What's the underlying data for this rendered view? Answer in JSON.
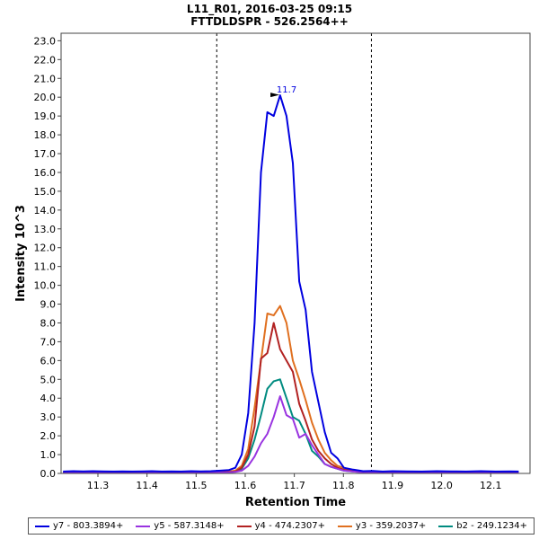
{
  "chart_data": {
    "type": "line",
    "title": "L11_R01, 2016-03-25 09:15",
    "subtitle": "FTTDLDSPR - 526.2564++",
    "xlabel": "Retention Time",
    "ylabel": "Intensity 10^3",
    "xlim": [
      11.225,
      12.18
    ],
    "ylim": [
      0,
      23.4
    ],
    "xticks": [
      "11.3",
      "11.4",
      "11.5",
      "11.6",
      "11.7",
      "11.8",
      "11.9",
      "12.0",
      "12.1"
    ],
    "yticks": [
      "0.0",
      "1.0",
      "2.0",
      "3.0",
      "4.0",
      "5.0",
      "6.0",
      "7.0",
      "8.0",
      "9.0",
      "10.0",
      "11.0",
      "12.0",
      "13.0",
      "14.0",
      "15.0",
      "16.0",
      "17.0",
      "18.0",
      "19.0",
      "20.0",
      "21.0",
      "22.0",
      "23.0"
    ],
    "integration_bounds": [
      11.542,
      11.857
    ],
    "peak_label": "11.7",
    "peak_label_x": 11.677,
    "peak_label_y": 20.1,
    "x": [
      11.229,
      11.25,
      11.27,
      11.29,
      11.31,
      11.33,
      11.35,
      11.37,
      11.39,
      11.41,
      11.43,
      11.45,
      11.47,
      11.49,
      11.51,
      11.53,
      11.55,
      11.567,
      11.58,
      11.593,
      11.606,
      11.619,
      11.632,
      11.645,
      11.658,
      11.671,
      11.684,
      11.697,
      11.71,
      11.723,
      11.736,
      11.749,
      11.762,
      11.775,
      11.788,
      11.801,
      11.82,
      11.84,
      11.86,
      11.88,
      11.9,
      11.93,
      11.96,
      11.99,
      12.02,
      12.05,
      12.08,
      12.11,
      12.14,
      12.157
    ],
    "series": [
      {
        "name": "y7 - 803.3894+",
        "color": "#0000e0",
        "values": [
          0.1,
          0.12,
          0.11,
          0.12,
          0.11,
          0.1,
          0.11,
          0.1,
          0.11,
          0.12,
          0.1,
          0.11,
          0.1,
          0.12,
          0.11,
          0.12,
          0.15,
          0.18,
          0.3,
          1.0,
          3.2,
          8.0,
          16.0,
          19.2,
          19.0,
          20.1,
          19.0,
          16.5,
          10.2,
          8.7,
          5.4,
          3.8,
          2.2,
          1.1,
          0.8,
          0.3,
          0.2,
          0.12,
          0.13,
          0.1,
          0.12,
          0.11,
          0.1,
          0.12,
          0.11,
          0.1,
          0.12,
          0.1,
          0.11,
          0.1
        ]
      },
      {
        "name": "y5 - 587.3148+",
        "color": "#9933e0",
        "values": [
          0.04,
          0.05,
          0.04,
          0.05,
          0.04,
          0.05,
          0.04,
          0.05,
          0.04,
          0.05,
          0.04,
          0.05,
          0.04,
          0.05,
          0.04,
          0.05,
          0.05,
          0.06,
          0.08,
          0.15,
          0.4,
          0.9,
          1.6,
          2.1,
          3.0,
          4.1,
          3.1,
          2.9,
          1.9,
          2.1,
          1.5,
          1.0,
          0.5,
          0.35,
          0.25,
          0.15,
          0.1,
          0.06,
          0.05,
          0.04,
          0.05,
          0.04,
          0.05,
          0.04,
          0.05,
          0.04,
          0.05,
          0.04,
          0.05,
          0.04
        ]
      },
      {
        "name": "y4 - 474.2307+",
        "color": "#b22222",
        "values": [
          0.05,
          0.06,
          0.05,
          0.06,
          0.05,
          0.06,
          0.05,
          0.06,
          0.05,
          0.06,
          0.05,
          0.06,
          0.05,
          0.06,
          0.05,
          0.06,
          0.06,
          0.08,
          0.1,
          0.3,
          1.0,
          2.5,
          6.1,
          6.4,
          8.0,
          6.6,
          6.0,
          5.4,
          3.7,
          2.8,
          1.8,
          1.2,
          0.8,
          0.5,
          0.3,
          0.2,
          0.12,
          0.08,
          0.07,
          0.06,
          0.05,
          0.06,
          0.05,
          0.06,
          0.05,
          0.06,
          0.05,
          0.06,
          0.05,
          0.05
        ]
      },
      {
        "name": "y3 - 359.2037+",
        "color": "#e07020",
        "values": [
          0.06,
          0.07,
          0.06,
          0.07,
          0.06,
          0.07,
          0.06,
          0.07,
          0.06,
          0.07,
          0.06,
          0.07,
          0.06,
          0.07,
          0.06,
          0.07,
          0.07,
          0.1,
          0.15,
          0.4,
          1.3,
          3.5,
          6.0,
          8.5,
          8.4,
          8.9,
          8.0,
          6.0,
          5.0,
          3.9,
          2.7,
          1.8,
          1.1,
          0.7,
          0.4,
          0.3,
          0.15,
          0.1,
          0.08,
          0.07,
          0.06,
          0.07,
          0.06,
          0.07,
          0.06,
          0.07,
          0.06,
          0.07,
          0.06,
          0.06
        ]
      },
      {
        "name": "b2 - 249.1234+",
        "color": "#008b80",
        "values": [
          0.04,
          0.05,
          0.04,
          0.05,
          0.04,
          0.05,
          0.04,
          0.05,
          0.04,
          0.05,
          0.04,
          0.05,
          0.04,
          0.05,
          0.04,
          0.05,
          0.05,
          0.07,
          0.1,
          0.25,
          0.8,
          1.8,
          3.1,
          4.5,
          4.9,
          5.0,
          4.0,
          3.0,
          2.8,
          2.1,
          1.2,
          0.9,
          0.5,
          0.35,
          0.25,
          0.15,
          0.1,
          0.07,
          0.05,
          0.04,
          0.05,
          0.04,
          0.05,
          0.04,
          0.05,
          0.04,
          0.05,
          0.04,
          0.05,
          0.04
        ]
      }
    ]
  }
}
